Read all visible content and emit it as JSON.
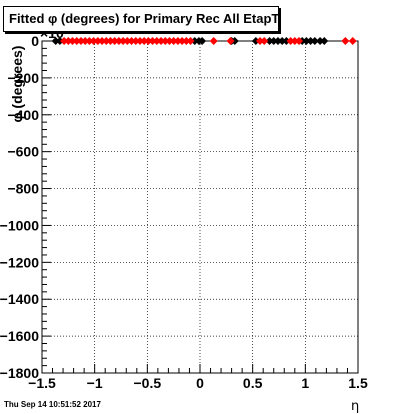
{
  "title": "Fitted φ (degrees) for Primary Rec All EtapT",
  "timestamp": "Thu Sep 14 10:51:52 2017",
  "chart_data": {
    "type": "scatter",
    "title": "Fitted φ (degrees) for Primary Rec All EtapT",
    "xlabel": "η",
    "ylabel": "φ (degrees)",
    "y_multiplier_label": "×10",
    "xlim": [
      -1.5,
      1.5
    ],
    "ylim": [
      -1800,
      0
    ],
    "x_ticks": [
      -1.5,
      -1,
      -0.5,
      0,
      0.5,
      1,
      1.5
    ],
    "x_tick_labels": [
      "−1.5",
      "−1",
      "−0.5",
      "0",
      "0.5",
      "1",
      "1.5"
    ],
    "y_ticks": [
      0,
      -200,
      -400,
      -600,
      -800,
      -1000,
      -1200,
      -1400,
      -1600,
      -1800
    ],
    "y_tick_labels": [
      "0",
      "−200",
      "−400",
      "−600",
      "−800",
      "−1000",
      "−1200",
      "−1400",
      "−1600",
      "−1800"
    ],
    "grid": true,
    "colors": {
      "series_a": "#000000",
      "series_b": "#ff0000"
    },
    "series": [
      {
        "color": "#000000",
        "x": [
          -1.37,
          -1.33,
          -0.05,
          -0.01,
          0.02,
          0.3,
          0.33,
          0.53,
          0.66,
          0.7,
          0.74,
          0.78,
          0.82,
          0.97,
          1.01,
          1.05,
          1.09,
          1.14,
          1.18
        ],
        "y": [
          0,
          0,
          0,
          0,
          0,
          0,
          0,
          0,
          0,
          0,
          0,
          0,
          0,
          0,
          0,
          0,
          0,
          0,
          0
        ]
      },
      {
        "color": "#ff0000",
        "x": [
          -1.29,
          -1.25,
          -1.21,
          -1.17,
          -1.13,
          -1.09,
          -1.05,
          -1.01,
          -0.97,
          -0.93,
          -0.89,
          -0.85,
          -0.81,
          -0.77,
          -0.73,
          -0.69,
          -0.65,
          -0.61,
          -0.57,
          -0.53,
          -0.49,
          -0.45,
          -0.41,
          -0.37,
          -0.33,
          -0.29,
          -0.25,
          -0.21,
          -0.17,
          -0.13,
          -0.09,
          0.13,
          0.29,
          0.57,
          0.61,
          0.86,
          0.9,
          0.94,
          1.38,
          1.45
        ],
        "y": [
          0,
          0,
          0,
          0,
          0,
          0,
          0,
          0,
          0,
          0,
          0,
          0,
          0,
          0,
          0,
          0,
          0,
          0,
          0,
          0,
          0,
          0,
          0,
          0,
          0,
          0,
          0,
          0,
          0,
          0,
          0,
          0,
          0,
          0,
          0,
          0,
          0,
          0,
          0,
          0
        ]
      }
    ]
  }
}
